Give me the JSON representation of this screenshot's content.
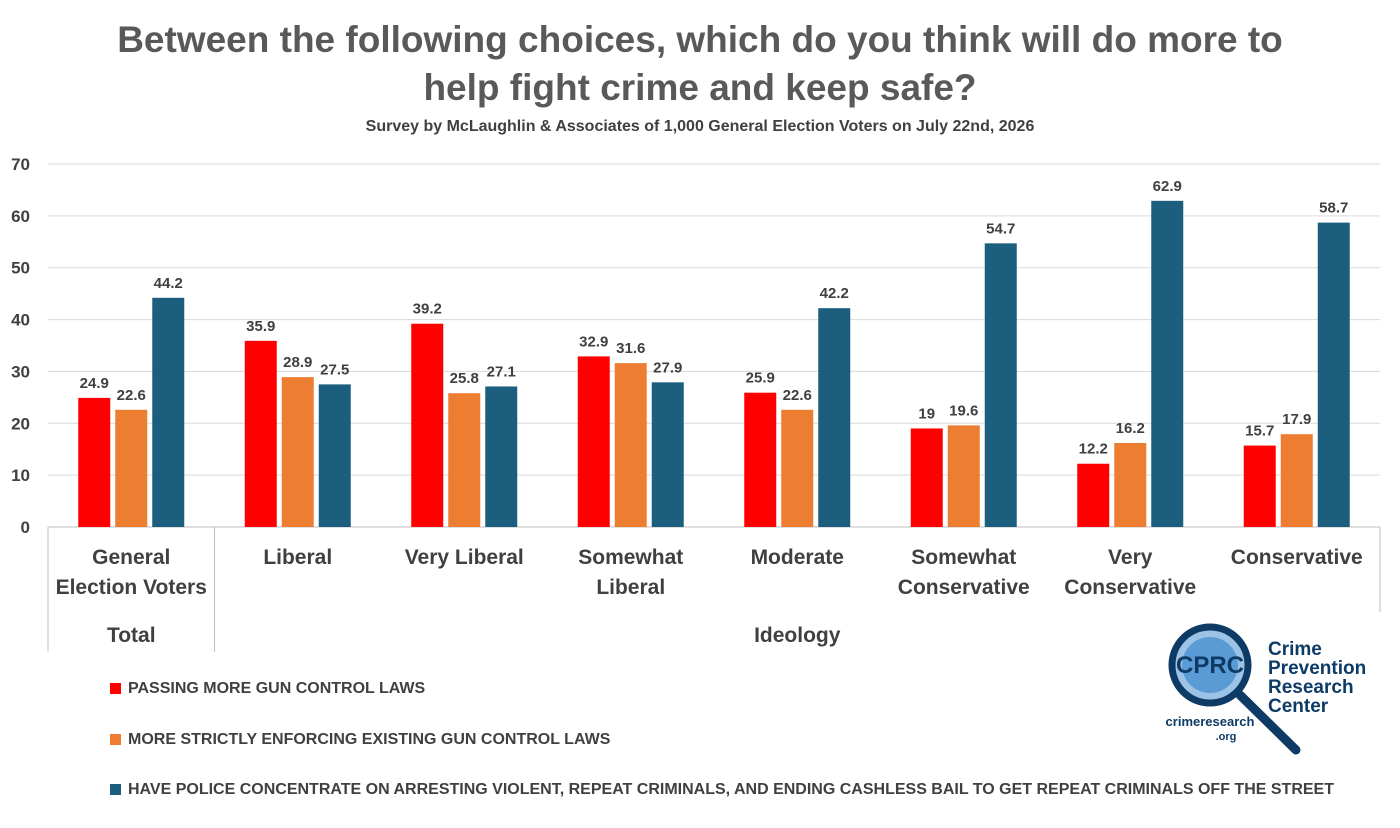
{
  "chart_data": {
    "type": "bar",
    "title": "Between the following choices, which do you think will do more to help fight crime and keep safe?",
    "subtitle": "Survey by McLaughlin & Associates of 1,000 General Election Voters on July 22nd, 2026",
    "categories": [
      "General Election Voters",
      "Liberal",
      "Very Liberal",
      "Somewhat Liberal",
      "Moderate",
      "Somewhat Conservative",
      "Very Conservative",
      "Conservative"
    ],
    "groups": [
      "Total",
      "Ideology"
    ],
    "series": [
      {
        "name": "PASSING MORE GUN CONTROL LAWS",
        "color": "#ff0000",
        "values": [
          24.9,
          35.9,
          39.2,
          32.9,
          25.9,
          19,
          12.2,
          15.7
        ]
      },
      {
        "name": "MORE STRICTLY ENFORCING EXISTING GUN CONTROL LAWS",
        "color": "#ed7d31",
        "values": [
          22.6,
          28.9,
          25.8,
          31.6,
          22.6,
          19.6,
          16.2,
          17.9
        ]
      },
      {
        "name": "HAVE POLICE CONCENTRATE ON ARRESTING VIOLENT, REPEAT CRIMINALS, AND ENDING CASHLESS BAIL TO GET REPEAT CRIMINALS OFF THE STREET",
        "color": "#1b5e7e",
        "values": [
          44.2,
          27.5,
          27.1,
          27.9,
          42.2,
          54.7,
          62.9,
          58.7
        ]
      }
    ],
    "ylim": [
      0,
      70
    ],
    "yticks": [
      0,
      10,
      20,
      30,
      40,
      50,
      60,
      70
    ],
    "grid": true
  },
  "logo": {
    "acronym": "CPRC",
    "name": [
      "Crime",
      "Prevention",
      "Research",
      "Center"
    ],
    "site": "crimeresearch",
    "domain": ".org"
  }
}
